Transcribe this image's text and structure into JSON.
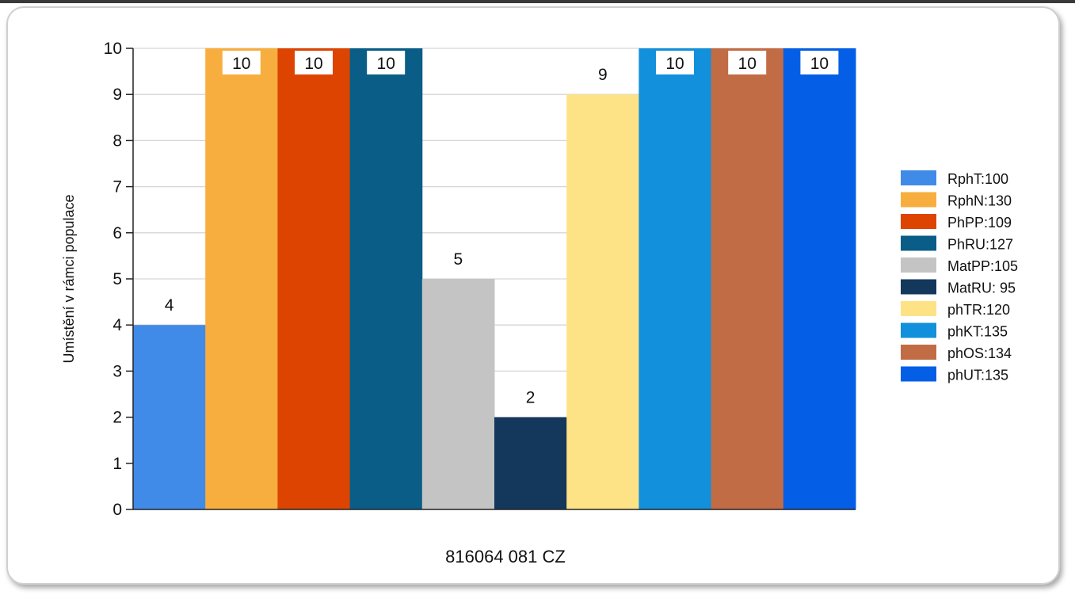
{
  "chart_data": {
    "type": "bar",
    "xlabel": "816064 081 CZ",
    "ylabel": "Umístění v rámci populace",
    "ylim": [
      0,
      10
    ],
    "yticks": [
      "0",
      "1",
      "2",
      "3",
      "4",
      "5",
      "6",
      "7",
      "8",
      "9",
      "10"
    ],
    "grid": true,
    "legend_position": "right",
    "series": [
      {
        "name": "RphT:100",
        "values": [
          4
        ],
        "color": "#418be8"
      },
      {
        "name": "RphN:130",
        "values": [
          10
        ],
        "color": "#f8ae3e"
      },
      {
        "name": "PhPP:109",
        "values": [
          10
        ],
        "color": "#dd4402"
      },
      {
        "name": "PhRU:127",
        "values": [
          10
        ],
        "color": "#095d86"
      },
      {
        "name": "MatPP:105",
        "values": [
          5
        ],
        "color": "#c4c4c4"
      },
      {
        "name": "MatRU: 95",
        "values": [
          2
        ],
        "color": "#14385c"
      },
      {
        "name": "phTR:120",
        "values": [
          9
        ],
        "color": "#fde385"
      },
      {
        "name": "phKT:135",
        "values": [
          10
        ],
        "color": "#1290db"
      },
      {
        "name": "phOS:134",
        "values": [
          10
        ],
        "color": "#c26c45"
      },
      {
        "name": "phUT:135",
        "values": [
          10
        ],
        "color": "#045fe6"
      }
    ],
    "data_labels": [
      "4",
      "10",
      "10",
      "10",
      "5",
      "2",
      "9",
      "10",
      "10",
      "10"
    ]
  }
}
